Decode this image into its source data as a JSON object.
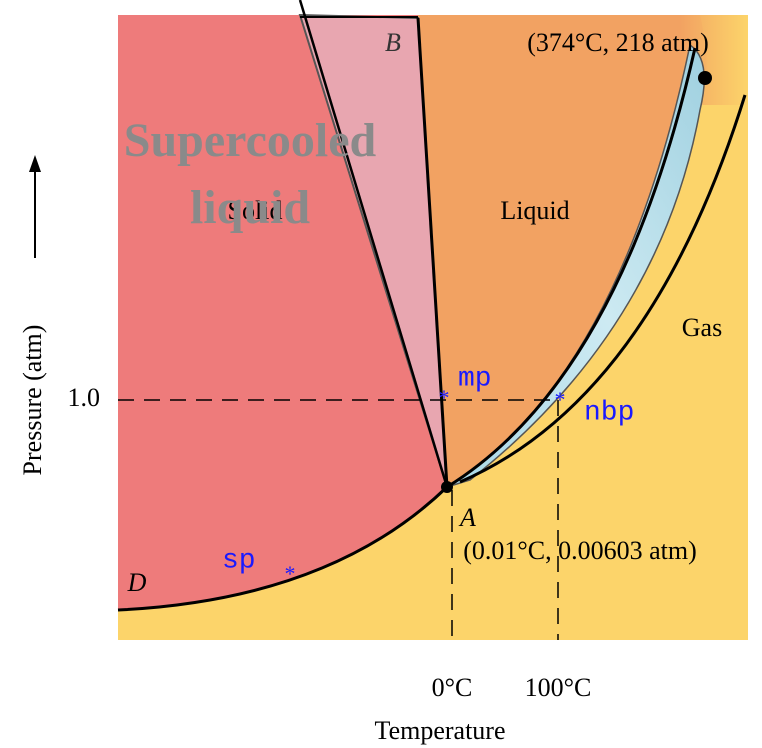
{
  "axes": {
    "x_title": "Temperature",
    "y_title": "Pressure (atm)",
    "y_tick": "1.0",
    "x_ticks": [
      "0°C",
      "100°C"
    ]
  },
  "regions": {
    "solid": "Solid",
    "liquid": "Liquid",
    "gas": "Gas",
    "supercooled": [
      "Supercooled",
      "liquid"
    ]
  },
  "points": {
    "critical": "(374°C, 218 atm)",
    "triple_name": "A",
    "triple": "(0.01°C, 0.00603 atm)",
    "b": "B",
    "d": "D"
  },
  "markers": {
    "mp": "mp",
    "nbp": "nbp",
    "sp": "sp"
  }
}
